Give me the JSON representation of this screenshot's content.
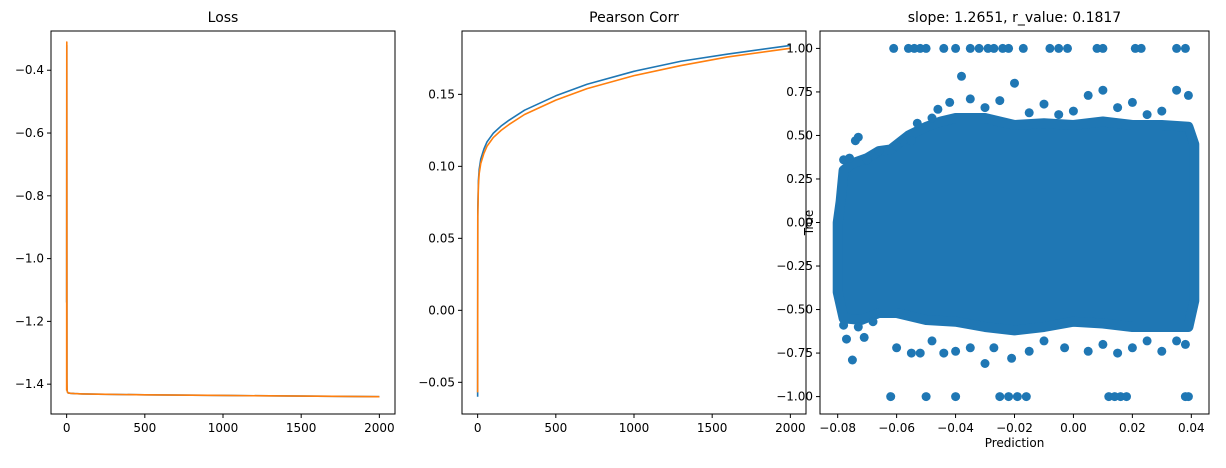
{
  "chart_data": [
    {
      "type": "line",
      "title": "Loss",
      "xlabel": "",
      "ylabel": "",
      "xlim": [
        -100,
        2100
      ],
      "ylim": [
        -1.495,
        -0.275
      ],
      "xticks": [
        0,
        500,
        1000,
        1500,
        2000
      ],
      "xtick_labels": [
        "0",
        "500",
        "1000",
        "1500",
        "2000"
      ],
      "yticks": [
        -1.4,
        -1.2,
        -1.0,
        -0.8,
        -0.6,
        -0.4
      ],
      "ytick_labels": [
        "−1.4",
        "−1.2",
        "−1.0",
        "−0.8",
        "−0.6",
        "−0.4"
      ],
      "grid": false,
      "series": [
        {
          "color": "#1f77b4",
          "x": [
            0,
            1,
            2,
            3,
            5,
            10,
            25,
            50,
            100,
            200,
            500,
            1000,
            1500,
            2000
          ],
          "y": [
            -1.14,
            -0.32,
            -1.4,
            -1.42,
            -1.425,
            -1.428,
            -1.429,
            -1.43,
            -1.431,
            -1.432,
            -1.434,
            -1.436,
            -1.438,
            -1.44
          ]
        },
        {
          "color": "#ff7f0e",
          "x": [
            0,
            1,
            2,
            3,
            5,
            10,
            25,
            50,
            100,
            200,
            500,
            1000,
            1500,
            2000
          ],
          "y": [
            -1.42,
            -0.31,
            -1.38,
            -1.42,
            -1.425,
            -1.428,
            -1.429,
            -1.43,
            -1.431,
            -1.432,
            -1.434,
            -1.436,
            -1.438,
            -1.44
          ]
        }
      ]
    },
    {
      "type": "line",
      "title": "Pearson Corr",
      "xlabel": "",
      "ylabel": "",
      "xlim": [
        -100,
        2100
      ],
      "ylim": [
        -0.072,
        0.194
      ],
      "xticks": [
        0,
        500,
        1000,
        1500,
        2000
      ],
      "xtick_labels": [
        "0",
        "500",
        "1000",
        "1500",
        "2000"
      ],
      "yticks": [
        -0.05,
        0.0,
        0.05,
        0.1,
        0.15
      ],
      "ytick_labels": [
        "−0.05",
        "0.00",
        "0.05",
        "0.10",
        "0.15"
      ],
      "grid": false,
      "series": [
        {
          "color": "#1f77b4",
          "x": [
            0,
            1,
            5,
            10,
            20,
            40,
            60,
            80,
            100,
            150,
            200,
            300,
            500,
            700,
            1000,
            1300,
            1600,
            2000
          ],
          "y": [
            -0.06,
            0.07,
            0.09,
            0.098,
            0.105,
            0.112,
            0.117,
            0.12,
            0.123,
            0.128,
            0.132,
            0.139,
            0.149,
            0.157,
            0.166,
            0.173,
            0.178,
            0.184
          ]
        },
        {
          "color": "#ff7f0e",
          "x": [
            0,
            1,
            5,
            10,
            20,
            40,
            60,
            80,
            100,
            150,
            200,
            300,
            500,
            700,
            1000,
            1300,
            1600,
            2000
          ],
          "y": [
            -0.057,
            0.065,
            0.087,
            0.095,
            0.102,
            0.109,
            0.114,
            0.117,
            0.12,
            0.125,
            0.129,
            0.136,
            0.146,
            0.154,
            0.163,
            0.17,
            0.176,
            0.182
          ]
        }
      ]
    },
    {
      "type": "scatter",
      "title": "slope: 1.2651, r_value: 0.1817",
      "xlabel": "Prediction",
      "ylabel": "True",
      "xlim": [
        -0.086,
        0.046
      ],
      "ylim": [
        -1.1,
        1.1
      ],
      "xticks": [
        -0.08,
        -0.06,
        -0.04,
        -0.02,
        0.0,
        0.02,
        0.04
      ],
      "xtick_labels": [
        "−0.08",
        "−0.06",
        "−0.04",
        "−0.02",
        "0.00",
        "0.02",
        "0.04"
      ],
      "yticks": [
        -1.0,
        -0.75,
        -0.5,
        -0.25,
        0.0,
        0.25,
        0.5,
        0.75,
        1.0
      ],
      "ytick_labels": [
        "−1.00",
        "−0.75",
        "−0.50",
        "−0.25",
        "0.00",
        "0.25",
        "0.50",
        "0.75",
        "1.00"
      ],
      "grid": false,
      "color": "#1f77b4",
      "points": [
        [
          -0.061,
          1.0
        ],
        [
          -0.056,
          1.0
        ],
        [
          -0.054,
          1.0
        ],
        [
          -0.052,
          1.0
        ],
        [
          -0.05,
          1.0
        ],
        [
          -0.044,
          1.0
        ],
        [
          -0.04,
          1.0
        ],
        [
          -0.035,
          1.0
        ],
        [
          -0.032,
          1.0
        ],
        [
          -0.029,
          1.0
        ],
        [
          -0.027,
          1.0
        ],
        [
          -0.024,
          1.0
        ],
        [
          -0.022,
          1.0
        ],
        [
          -0.017,
          1.0
        ],
        [
          -0.008,
          1.0
        ],
        [
          -0.005,
          1.0
        ],
        [
          -0.002,
          1.0
        ],
        [
          0.008,
          1.0
        ],
        [
          0.01,
          1.0
        ],
        [
          0.021,
          1.0
        ],
        [
          0.023,
          1.0
        ],
        [
          0.035,
          1.0
        ],
        [
          0.038,
          1.0
        ],
        [
          -0.062,
          -1.0
        ],
        [
          -0.05,
          -1.0
        ],
        [
          -0.04,
          -1.0
        ],
        [
          -0.025,
          -1.0
        ],
        [
          -0.022,
          -1.0
        ],
        [
          -0.019,
          -1.0
        ],
        [
          -0.016,
          -1.0
        ],
        [
          0.012,
          -1.0
        ],
        [
          0.014,
          -1.0
        ],
        [
          0.016,
          -1.0
        ],
        [
          0.018,
          -1.0
        ],
        [
          0.038,
          -1.0
        ],
        [
          0.039,
          -1.0
        ],
        [
          -0.078,
          -0.59
        ],
        [
          -0.077,
          -0.67
        ],
        [
          -0.075,
          -0.79
        ],
        [
          -0.073,
          -0.6
        ],
        [
          -0.071,
          -0.66
        ],
        [
          -0.068,
          -0.57
        ],
        [
          -0.06,
          -0.72
        ],
        [
          -0.055,
          -0.75
        ],
        [
          -0.052,
          -0.75
        ],
        [
          -0.048,
          -0.68
        ],
        [
          -0.044,
          -0.75
        ],
        [
          -0.04,
          -0.74
        ],
        [
          -0.035,
          -0.72
        ],
        [
          -0.03,
          -0.81
        ],
        [
          -0.027,
          -0.72
        ],
        [
          -0.021,
          -0.78
        ],
        [
          -0.015,
          -0.74
        ],
        [
          -0.01,
          -0.68
        ],
        [
          -0.003,
          -0.72
        ],
        [
          0.005,
          -0.74
        ],
        [
          0.01,
          -0.7
        ],
        [
          0.015,
          -0.75
        ],
        [
          0.02,
          -0.72
        ],
        [
          0.025,
          -0.68
        ],
        [
          0.03,
          -0.74
        ],
        [
          0.035,
          -0.68
        ],
        [
          0.038,
          -0.7
        ],
        [
          -0.078,
          0.36
        ],
        [
          -0.076,
          0.37
        ],
        [
          -0.074,
          0.47
        ],
        [
          -0.073,
          0.49
        ],
        [
          -0.07,
          0.36
        ],
        [
          -0.066,
          0.41
        ],
        [
          -0.06,
          0.44
        ],
        [
          -0.055,
          0.47
        ],
        [
          -0.053,
          0.57
        ],
        [
          -0.048,
          0.6
        ],
        [
          -0.046,
          0.65
        ],
        [
          -0.042,
          0.69
        ],
        [
          -0.038,
          0.84
        ],
        [
          -0.035,
          0.71
        ],
        [
          -0.03,
          0.66
        ],
        [
          -0.025,
          0.7
        ],
        [
          -0.02,
          0.8
        ],
        [
          -0.015,
          0.63
        ],
        [
          -0.01,
          0.68
        ],
        [
          -0.005,
          0.62
        ],
        [
          0.0,
          0.64
        ],
        [
          0.005,
          0.73
        ],
        [
          0.01,
          0.76
        ],
        [
          0.015,
          0.66
        ],
        [
          0.02,
          0.69
        ],
        [
          0.025,
          0.62
        ],
        [
          0.03,
          0.64
        ],
        [
          0.035,
          0.76
        ],
        [
          0.039,
          0.73
        ]
      ]
    }
  ]
}
